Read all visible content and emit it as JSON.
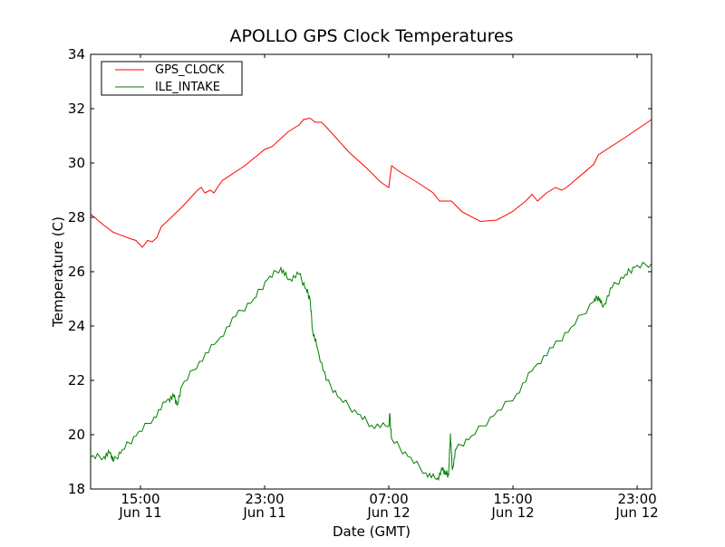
{
  "chart_data": {
    "type": "line",
    "title": "APOLLO GPS Clock Temperatures",
    "xlabel": "Date (GMT)",
    "ylabel": "Temperature (C)",
    "x_units": "hours since Jun 11 00:00 GMT",
    "xlim": [
      11.79,
      47.93
    ],
    "ylim": [
      18,
      34
    ],
    "yticks": [
      18,
      20,
      22,
      24,
      26,
      28,
      30,
      32,
      34
    ],
    "xticks": [
      {
        "value": 15,
        "time": "15:00",
        "date": "Jun 11"
      },
      {
        "value": 23,
        "time": "23:00",
        "date": "Jun 11"
      },
      {
        "value": 31,
        "time": "07:00",
        "date": "Jun 12"
      },
      {
        "value": 39,
        "time": "15:00",
        "date": "Jun 12"
      },
      {
        "value": 47,
        "time": "23:00",
        "date": "Jun 12"
      }
    ],
    "grid": false,
    "legend_position": "top-left",
    "series": [
      {
        "name": "GPS_CLOCK",
        "color": "#ff0000",
        "x": [
          11.79,
          12.66,
          13.25,
          14.42,
          14.71,
          15.12,
          15.47,
          15.76,
          16.05,
          16.34,
          17.63,
          18.68,
          18.91,
          19.15,
          19.5,
          19.73,
          20.26,
          21.72,
          23.0,
          23.47,
          24.52,
          25.22,
          25.51,
          25.92,
          26.27,
          26.68,
          27.09,
          28.43,
          29.6,
          30.47,
          31.0,
          31.18,
          31.64,
          32.81,
          33.86,
          34.27,
          35.03,
          35.73,
          36.9,
          37.95,
          38.94,
          39.82,
          40.23,
          40.58,
          41.16,
          41.74,
          42.15,
          42.45,
          44.2,
          44.5,
          46.25,
          47.93
        ],
        "y": [
          28.12,
          27.7,
          27.45,
          27.2,
          27.15,
          26.9,
          27.15,
          27.1,
          27.25,
          27.65,
          28.35,
          29.0,
          29.1,
          28.9,
          29.0,
          28.9,
          29.35,
          29.9,
          30.5,
          30.6,
          31.15,
          31.4,
          31.6,
          31.65,
          31.5,
          31.5,
          31.25,
          30.4,
          29.8,
          29.3,
          29.1,
          29.9,
          29.7,
          29.3,
          28.9,
          28.6,
          28.6,
          28.2,
          27.85,
          27.9,
          28.2,
          28.6,
          28.85,
          28.6,
          28.9,
          29.1,
          29.0,
          29.1,
          29.95,
          30.3,
          30.95,
          31.6
        ]
      },
      {
        "name": "ILE_INTAKE",
        "color": "#008000",
        "x": [
          11.79,
          12.66,
          13.07,
          13.25,
          13.83,
          14.71,
          15.88,
          16.75,
          17.16,
          17.39,
          17.63,
          18.8,
          19.96,
          21.13,
          22.3,
          23.18,
          24.05,
          24.52,
          25.22,
          25.69,
          25.92,
          26.09,
          26.39,
          26.97,
          27.85,
          29.01,
          29.89,
          31.0,
          31.06,
          31.18,
          32.23,
          33.39,
          34.09,
          34.45,
          34.68,
          34.85,
          34.97,
          35.09,
          35.32,
          36.31,
          37.77,
          39.23,
          40.4,
          41.57,
          42.74,
          44.2,
          44.5,
          44.79,
          45.37,
          46.25,
          46.82,
          47.93
        ],
        "y": [
          19.17,
          19.2,
          19.35,
          19.0,
          19.45,
          19.95,
          20.65,
          21.3,
          21.4,
          21.1,
          21.75,
          22.7,
          23.45,
          24.35,
          25.0,
          25.7,
          26.15,
          25.7,
          25.9,
          25.35,
          25.0,
          23.85,
          23.2,
          22.0,
          21.35,
          20.75,
          20.35,
          20.3,
          20.75,
          19.85,
          19.2,
          18.6,
          18.35,
          18.7,
          18.6,
          18.5,
          20.05,
          18.7,
          19.45,
          19.95,
          20.7,
          21.5,
          22.5,
          23.2,
          23.95,
          24.9,
          25.1,
          24.7,
          25.4,
          25.9,
          26.15,
          26.3
        ]
      }
    ]
  }
}
